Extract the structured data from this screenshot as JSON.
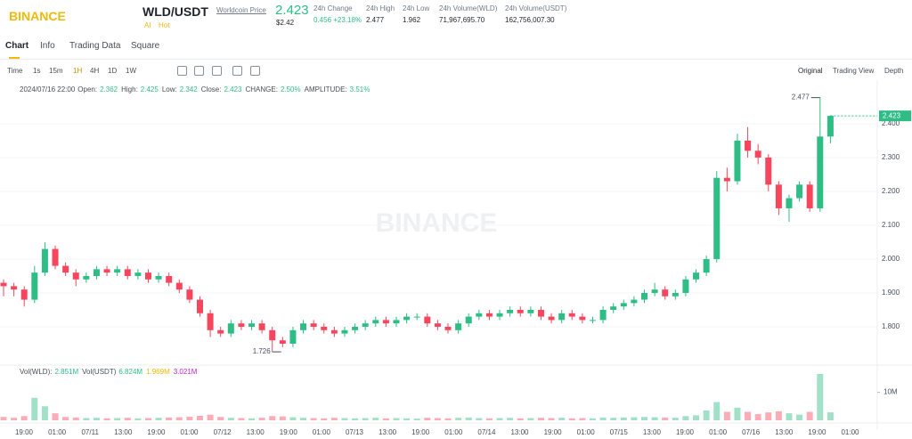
{
  "header": {
    "logo": "BINANCE",
    "pair": "WLD/USDT",
    "price_link": "Worldcoin Price",
    "price": "2.423",
    "price_usd": "$2.42",
    "tags": [
      "AI",
      "Hot"
    ],
    "stats": [
      {
        "label": "24h Change",
        "value": "0.456 +23.18%"
      },
      {
        "label": "24h High",
        "value": "2.477"
      },
      {
        "label": "24h Low",
        "value": "1.962"
      },
      {
        "label": "24h Volume(WLD)",
        "value": "71,967,695.70"
      },
      {
        "label": "24h Volume(USDT)",
        "value": "162,756,007.30"
      }
    ]
  },
  "tabs": [
    "Chart",
    "Info",
    "Trading Data",
    "Square"
  ],
  "toolbar": {
    "intervals": [
      "Time",
      "1s",
      "15m",
      "1H",
      "4H",
      "1D",
      "1W"
    ],
    "views": [
      "Original",
      "Trading View",
      "Depth"
    ]
  },
  "chart_data": {
    "type": "candlestick",
    "watermark": "BINANCE",
    "info": [
      {
        "label": "2024/07/16 22:00"
      },
      {
        "label": "Open:",
        "value": "2.362"
      },
      {
        "label": "High:",
        "value": "2.425"
      },
      {
        "label": "Low:",
        "value": "2.342"
      },
      {
        "label": "Close:",
        "value": "2.423"
      },
      {
        "label": "CHANGE:",
        "value": "2.50%"
      },
      {
        "label": "AMPLITUDE:",
        "value": "3.51%"
      }
    ],
    "up_color": "#2ebd85",
    "down_color": "#f6465d",
    "ylim": [
      1.7,
      2.476
    ],
    "yticks": [
      {
        "value": 1.8,
        "label": "1.800"
      },
      {
        "value": 1.9,
        "label": "1.900"
      },
      {
        "value": 2.0,
        "label": "2.000"
      },
      {
        "value": 2.1,
        "label": "2.100"
      },
      {
        "value": 2.2,
        "label": "2.200"
      },
      {
        "value": 2.3,
        "label": "2.300"
      },
      {
        "value": 2.4,
        "label": "2.400"
      }
    ],
    "last_price": {
      "value": 2.423,
      "label": "2.423"
    },
    "high_mark": {
      "value": 2.477,
      "label": "2.477"
    },
    "low_mark": {
      "value": 1.726,
      "label": "1.726"
    },
    "x_labels": [
      "19:00",
      "01:00",
      "07/11",
      "13:00",
      "19:00",
      "01:00",
      "07/12",
      "13:00",
      "19:00",
      "01:00",
      "07/13",
      "13:00",
      "19:00",
      "01:00",
      "07/14",
      "13:00",
      "19:00",
      "01:00",
      "07/15",
      "13:00",
      "19:00",
      "01:00",
      "07/16",
      "13:00",
      "19:00",
      "01:00"
    ],
    "ohlc": [
      [
        1.93,
        1.94,
        1.89,
        1.92
      ],
      [
        1.92,
        1.93,
        1.89,
        1.91
      ],
      [
        1.91,
        1.92,
        1.86,
        1.88
      ],
      [
        1.88,
        1.98,
        1.87,
        1.96
      ],
      [
        1.96,
        2.05,
        1.95,
        2.03
      ],
      [
        2.03,
        2.04,
        1.97,
        1.98
      ],
      [
        1.98,
        1.99,
        1.95,
        1.96
      ],
      [
        1.96,
        1.97,
        1.92,
        1.94
      ],
      [
        1.94,
        1.96,
        1.93,
        1.95
      ],
      [
        1.95,
        1.98,
        1.94,
        1.97
      ],
      [
        1.97,
        1.98,
        1.95,
        1.96
      ],
      [
        1.96,
        1.98,
        1.95,
        1.97
      ],
      [
        1.97,
        1.98,
        1.94,
        1.95
      ],
      [
        1.95,
        1.97,
        1.94,
        1.96
      ],
      [
        1.96,
        1.97,
        1.93,
        1.94
      ],
      [
        1.94,
        1.96,
        1.93,
        1.95
      ],
      [
        1.95,
        1.96,
        1.92,
        1.93
      ],
      [
        1.93,
        1.94,
        1.9,
        1.91
      ],
      [
        1.91,
        1.92,
        1.87,
        1.88
      ],
      [
        1.88,
        1.89,
        1.83,
        1.84
      ],
      [
        1.84,
        1.85,
        1.77,
        1.79
      ],
      [
        1.79,
        1.8,
        1.77,
        1.78
      ],
      [
        1.78,
        1.82,
        1.77,
        1.81
      ],
      [
        1.81,
        1.82,
        1.79,
        1.8
      ],
      [
        1.8,
        1.82,
        1.79,
        1.81
      ],
      [
        1.81,
        1.82,
        1.78,
        1.79
      ],
      [
        1.79,
        1.8,
        1.726,
        1.76
      ],
      [
        1.76,
        1.77,
        1.74,
        1.75
      ],
      [
        1.75,
        1.8,
        1.74,
        1.79
      ],
      [
        1.79,
        1.82,
        1.78,
        1.81
      ],
      [
        1.81,
        1.82,
        1.79,
        1.8
      ],
      [
        1.8,
        1.81,
        1.78,
        1.79
      ],
      [
        1.79,
        1.8,
        1.77,
        1.78
      ],
      [
        1.78,
        1.8,
        1.77,
        1.79
      ],
      [
        1.79,
        1.81,
        1.78,
        1.8
      ],
      [
        1.8,
        1.82,
        1.79,
        1.81
      ],
      [
        1.81,
        1.83,
        1.8,
        1.82
      ],
      [
        1.82,
        1.83,
        1.8,
        1.81
      ],
      [
        1.81,
        1.83,
        1.8,
        1.82
      ],
      [
        1.82,
        1.84,
        1.81,
        1.83
      ],
      [
        1.83,
        1.84,
        1.82,
        1.83
      ],
      [
        1.83,
        1.84,
        1.8,
        1.81
      ],
      [
        1.81,
        1.82,
        1.79,
        1.8
      ],
      [
        1.8,
        1.81,
        1.78,
        1.79
      ],
      [
        1.79,
        1.82,
        1.78,
        1.81
      ],
      [
        1.81,
        1.84,
        1.8,
        1.83
      ],
      [
        1.83,
        1.85,
        1.82,
        1.84
      ],
      [
        1.84,
        1.85,
        1.82,
        1.83
      ],
      [
        1.83,
        1.85,
        1.82,
        1.84
      ],
      [
        1.84,
        1.86,
        1.83,
        1.85
      ],
      [
        1.85,
        1.86,
        1.83,
        1.84
      ],
      [
        1.84,
        1.86,
        1.83,
        1.85
      ],
      [
        1.85,
        1.86,
        1.82,
        1.83
      ],
      [
        1.83,
        1.84,
        1.81,
        1.82
      ],
      [
        1.82,
        1.85,
        1.81,
        1.84
      ],
      [
        1.84,
        1.85,
        1.82,
        1.83
      ],
      [
        1.83,
        1.84,
        1.81,
        1.82
      ],
      [
        1.82,
        1.83,
        1.81,
        1.82
      ],
      [
        1.82,
        1.86,
        1.81,
        1.85
      ],
      [
        1.85,
        1.87,
        1.84,
        1.86
      ],
      [
        1.86,
        1.88,
        1.85,
        1.87
      ],
      [
        1.87,
        1.89,
        1.86,
        1.88
      ],
      [
        1.88,
        1.91,
        1.87,
        1.9
      ],
      [
        1.9,
        1.93,
        1.89,
        1.91
      ],
      [
        1.91,
        1.92,
        1.88,
        1.89
      ],
      [
        1.89,
        1.91,
        1.88,
        1.9
      ],
      [
        1.9,
        1.95,
        1.89,
        1.94
      ],
      [
        1.94,
        1.97,
        1.93,
        1.96
      ],
      [
        1.96,
        2.01,
        1.95,
        2.0
      ],
      [
        2.0,
        2.26,
        1.99,
        2.24
      ],
      [
        2.24,
        2.27,
        2.2,
        2.23
      ],
      [
        2.23,
        2.37,
        2.22,
        2.35
      ],
      [
        2.35,
        2.39,
        2.3,
        2.32
      ],
      [
        2.32,
        2.34,
        2.28,
        2.3
      ],
      [
        2.3,
        2.31,
        2.2,
        2.22
      ],
      [
        2.22,
        2.23,
        2.13,
        2.15
      ],
      [
        2.15,
        2.19,
        2.11,
        2.18
      ],
      [
        2.18,
        2.23,
        2.17,
        2.22
      ],
      [
        2.22,
        2.23,
        2.14,
        2.15
      ],
      [
        2.15,
        2.477,
        2.14,
        2.362
      ],
      [
        2.362,
        2.425,
        2.342,
        2.423
      ]
    ],
    "volume": [
      1200000,
      900000,
      1500000,
      8000000,
      5000000,
      2500000,
      1200000,
      1000000,
      800000,
      900000,
      700000,
      800000,
      900000,
      700000,
      800000,
      900000,
      1000000,
      1100000,
      1300000,
      1600000,
      2000000,
      1200000,
      900000,
      800000,
      700000,
      900000,
      1500000,
      1400000,
      1100000,
      900000,
      800000,
      700000,
      900000,
      800000,
      700000,
      800000,
      900000,
      700000,
      800000,
      700000,
      600000,
      900000,
      800000,
      700000,
      900000,
      1000000,
      800000,
      700000,
      800000,
      900000,
      700000,
      800000,
      900000,
      800000,
      900000,
      700000,
      800000,
      700000,
      1000000,
      900000,
      1000000,
      1100000,
      1200000,
      1100000,
      1000000,
      900000,
      1500000,
      1800000,
      3500000,
      6500000,
      3000000,
      4500000,
      3000000,
      2200000,
      2800000,
      3200000,
      2500000,
      2000000,
      3000000,
      16500000,
      2851000
    ],
    "vol_ylim": [
      0,
      16500000
    ],
    "vol_yticks": [
      {
        "value": 10000000,
        "label": "10M"
      }
    ],
    "vol_legend": [
      {
        "label": "Vol(WLD):",
        "value": "2.851M"
      },
      {
        "label": "Vol(USDT)",
        "value": "6.824M"
      },
      {
        "value": "1.969M"
      },
      {
        "value": "3.021M"
      }
    ]
  }
}
